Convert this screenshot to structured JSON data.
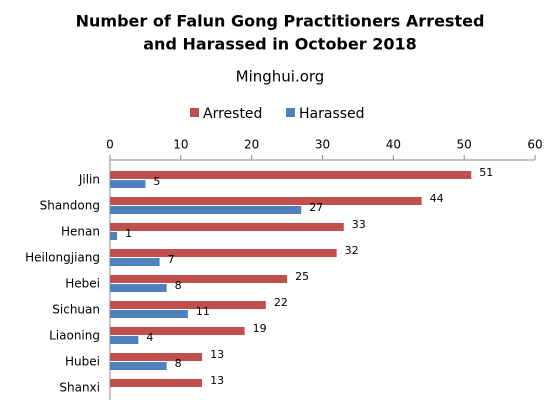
{
  "chart_data": {
    "type": "hbar",
    "title": [
      "Number of Falun Gong Practitioners Arrested",
      "and Harassed in October 2018"
    ],
    "subtitle": "Minghui.org",
    "categories": [
      "Jilin",
      "Shandong",
      "Henan",
      "Heilongjiang",
      "Hebei",
      "Sichuan",
      "Liaoning",
      "Hubei",
      "Shanxi"
    ],
    "series": [
      {
        "name": "Arrested",
        "color": "#c0504d",
        "values": [
          51,
          44,
          33,
          32,
          25,
          22,
          19,
          13,
          13
        ]
      },
      {
        "name": "Harassed",
        "color": "#4f81bd",
        "values": [
          5,
          27,
          1,
          7,
          8,
          11,
          4,
          8,
          null
        ]
      }
    ],
    "xlim": [
      0,
      60
    ],
    "xticks": [
      0,
      10,
      20,
      30,
      40,
      50,
      60
    ]
  }
}
